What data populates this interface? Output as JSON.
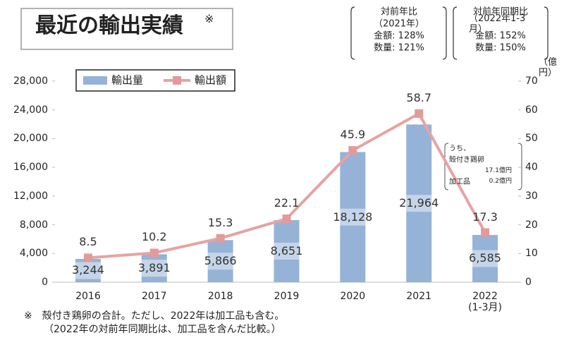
{
  "chart_data": {
    "type": "bar",
    "title": "最近の輸出実績",
    "title_mark": "※",
    "categories": [
      "2016",
      "2017",
      "2018",
      "2019",
      "2020",
      "2021",
      "2022\n(1-3月)"
    ],
    "series": [
      {
        "name": "輸出量",
        "type": "bar",
        "color": "#95b3d7",
        "values": [
          3244,
          3891,
          5866,
          8651,
          18128,
          21964,
          6585
        ],
        "value_labels": [
          "3,244",
          "3,891",
          "5,866",
          "8,651",
          "18,128",
          "21,964",
          "6,585"
        ]
      },
      {
        "name": "輸出額",
        "type": "line",
        "axis": "y2",
        "color": "#e6a3a3",
        "values": [
          8.5,
          10.2,
          15.3,
          22.1,
          45.9,
          58.7,
          17.3
        ]
      }
    ],
    "ylim": [
      0,
      28000
    ],
    "yticks": [
      0,
      {
        "value": 4000,
        "label": "4,000"
      },
      {
        "value": 8000,
        "label": "8,000"
      },
      {
        "value": 12000,
        "label": "12,000"
      },
      {
        "value": 16000,
        "label": "16,000"
      },
      {
        "value": 20000,
        "label": "20,000"
      },
      {
        "value": 24000,
        "label": "24,000"
      },
      {
        "value": 28000,
        "label": "28,000"
      }
    ],
    "y2lim": [
      0,
      70
    ],
    "y2ticks": [
      0,
      10,
      20,
      30,
      40,
      50,
      60,
      70
    ],
    "y2_unit": "（億円）",
    "legend": "top-left",
    "comparisons": [
      {
        "lines": [
          "対前年比",
          "（2021年）",
          "金額: 128%",
          "数量: 121%"
        ]
      },
      {
        "lines": [
          "対前年同期比",
          "（2022年1-3月）",
          "金額: 152%",
          "数量: 150%"
        ]
      }
    ],
    "annotation": {
      "lines": [
        "うち、",
        "殻付き鶏卵",
        "加工品"
      ],
      "values": [
        "17.1億円",
        "0.2億円"
      ]
    },
    "footnotes": [
      "※　殻付き鶏卵の合計。ただし、2022年は加工品も含む。",
      "（2022年の対前年同期比は、加工品を含んだ比較。）"
    ]
  }
}
